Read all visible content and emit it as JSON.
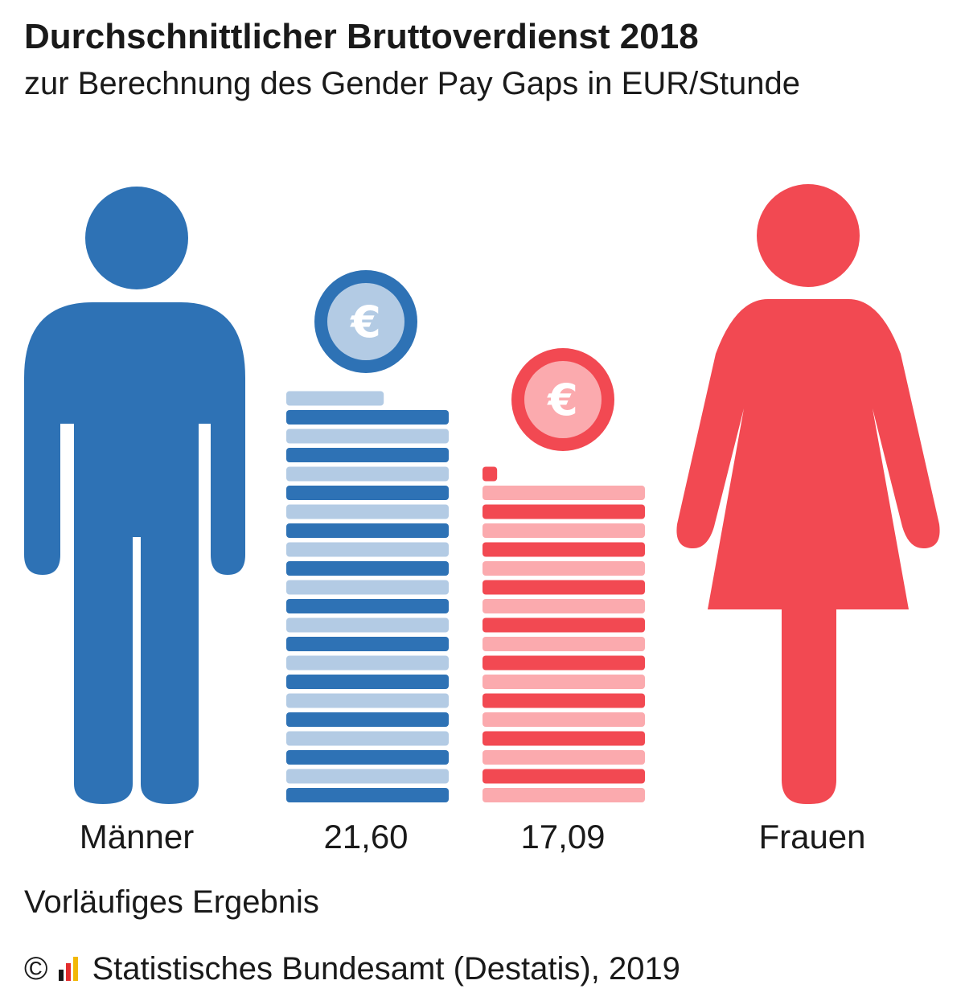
{
  "header": {
    "title": "Durchschnittlicher Bruttoverdienst 2018",
    "subtitle": "zur Berechnung des Gender Pay Gaps in EUR/Stunde"
  },
  "chart_data": {
    "type": "bar",
    "categories": [
      "Männer",
      "Frauen"
    ],
    "values": [
      21.6,
      17.09
    ],
    "value_labels": [
      "21,60",
      "17,09"
    ],
    "unit": "EUR/Stunde",
    "title": "Durchschnittlicher Bruttoverdienst 2018",
    "subtitle": "zur Berechnung des Gender Pay Gaps in EUR/Stunde",
    "colors": {
      "men_dark": "#2e72b5",
      "men_light": "#b3cbe4",
      "women_dark": "#f24952",
      "women_light": "#fbaaae"
    },
    "icons": [
      "man-figure-icon",
      "euro-coin-icon",
      "woman-figure-icon"
    ]
  },
  "footer": {
    "note": "Vorläufiges Ergebnis",
    "copyright_symbol": "©",
    "source": "Statistisches Bundesamt (Destatis), 2019",
    "logo_colors": [
      "#1a1a1a",
      "#e32d2d",
      "#f2b705"
    ]
  }
}
